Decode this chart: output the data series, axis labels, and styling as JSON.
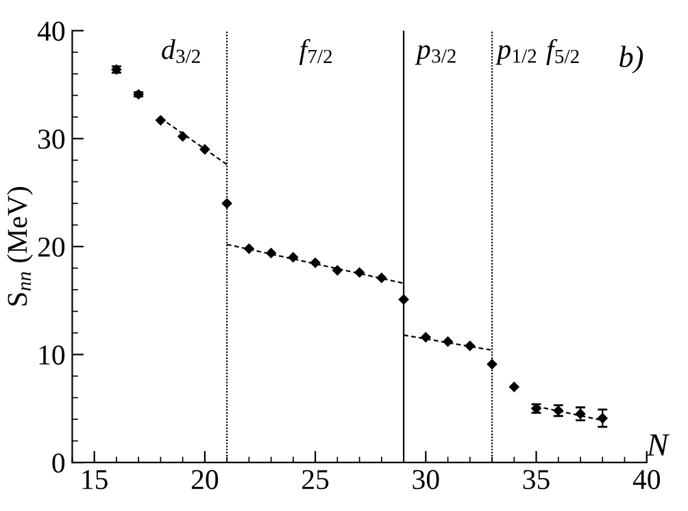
{
  "chart_data": {
    "type": "scatter",
    "xlabel": "N",
    "ylabel": "S$_{nn}$ (MeV)",
    "xlim": [
      14,
      40
    ],
    "ylim": [
      0,
      40
    ],
    "xticks": [
      15,
      20,
      25,
      30,
      35,
      40
    ],
    "yticks": [
      0,
      10,
      20,
      30,
      40
    ],
    "grid": false,
    "legend": false,
    "marker": "diamond",
    "series": [
      {
        "color": "#000000",
        "x": [
          16,
          17,
          18,
          19,
          20,
          21,
          22,
          23,
          24,
          25,
          26,
          27,
          28,
          29,
          30,
          31,
          32,
          33,
          34,
          35,
          36,
          37,
          38
        ],
        "values": [
          36.4,
          34.1,
          31.7,
          30.2,
          29.0,
          24.0,
          19.8,
          19.4,
          19.0,
          18.5,
          17.8,
          17.6,
          17.1,
          15.1,
          11.6,
          11.2,
          10.8,
          9.1,
          7.0,
          5.0,
          4.8,
          4.5,
          4.1
        ],
        "errors": [
          0.3,
          0.2,
          null,
          null,
          null,
          null,
          null,
          null,
          null,
          null,
          null,
          null,
          null,
          null,
          null,
          null,
          null,
          null,
          null,
          0.4,
          0.5,
          0.6,
          0.8
        ]
      },
      {
        "type": "line",
        "color": "#000000",
        "line_style": "dashed",
        "marker": "none",
        "x": [
          18,
          21
        ],
        "values": [
          31.9,
          27.6
        ]
      },
      {
        "type": "line",
        "color": "#000000",
        "line_style": "dashed",
        "marker": "none",
        "x": [
          21,
          29
        ],
        "values": [
          20.2,
          16.6
        ]
      },
      {
        "type": "line",
        "color": "#000000",
        "line_style": "dashed",
        "marker": "none",
        "x": [
          29,
          33
        ],
        "values": [
          11.8,
          10.4
        ]
      },
      {
        "type": "line",
        "color": "#000000",
        "line_style": "dashed",
        "marker": "none",
        "x": [
          35,
          38
        ],
        "values": [
          5.2,
          3.9
        ]
      }
    ],
    "ref_lines": [
      {
        "axis": "x",
        "value": 21,
        "line_style": "dotted",
        "color": "#000000"
      },
      {
        "axis": "x",
        "value": 29,
        "line_style": "solid",
        "color": "#000000"
      },
      {
        "axis": "x",
        "value": 33,
        "line_style": "dotted",
        "color": "#000000"
      }
    ],
    "annotations": [
      "d$_{3/2}$",
      "f$_{7/2}$",
      "p$_{3/2}$",
      "p$_{1/2}$",
      "f$_{5/2}$",
      "b)"
    ]
  }
}
